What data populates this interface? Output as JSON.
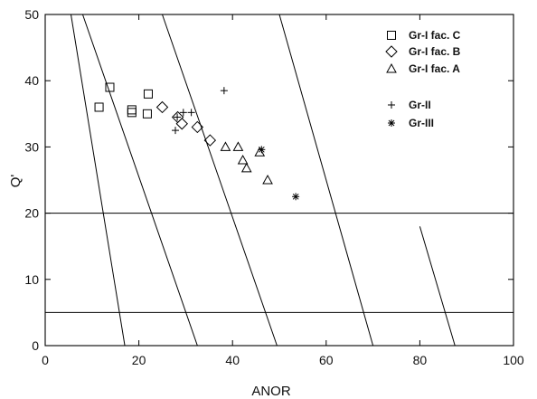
{
  "chart_data": {
    "type": "scatter",
    "title": "",
    "xlabel": "ANOR",
    "ylabel": "Q'",
    "xlim": [
      0,
      100
    ],
    "ylim": [
      0,
      50
    ],
    "xticks": [
      "0",
      "20",
      "40",
      "60",
      "80",
      "100"
    ],
    "yticks": [
      "0",
      "10",
      "20",
      "30",
      "40",
      "50"
    ],
    "grid": false,
    "legend_position": "top-right",
    "field_boundaries": [
      {
        "from": [
          5.5,
          50
        ],
        "to": [
          17,
          0
        ]
      },
      {
        "from": [
          8,
          50
        ],
        "to": [
          32.5,
          0
        ]
      },
      {
        "from": [
          25,
          50
        ],
        "to": [
          49.5,
          0
        ]
      },
      {
        "from": [
          50,
          50
        ],
        "to": [
          70,
          0
        ]
      },
      {
        "from": [
          80,
          18
        ],
        "to": [
          87.5,
          0
        ]
      },
      {
        "from": [
          0,
          20
        ],
        "to": [
          100,
          20
        ]
      },
      {
        "from": [
          0,
          5
        ],
        "to": [
          100,
          5
        ]
      }
    ],
    "series": [
      {
        "name": "Gr-I fac. C",
        "marker": "square",
        "points": [
          [
            11.5,
            36
          ],
          [
            13.8,
            39
          ],
          [
            18.5,
            35.2
          ],
          [
            18.5,
            35.6
          ],
          [
            21.8,
            35
          ],
          [
            22,
            38
          ]
        ]
      },
      {
        "name": "Gr-I fac. B",
        "marker": "diamond",
        "points": [
          [
            25,
            36
          ],
          [
            28.3,
            34.5
          ],
          [
            29.2,
            33.5
          ],
          [
            32.5,
            33
          ],
          [
            35.2,
            31
          ]
        ]
      },
      {
        "name": "Gr-I fac. A",
        "marker": "triangle",
        "points": [
          [
            38.5,
            30
          ],
          [
            41.2,
            30
          ],
          [
            42.2,
            28
          ],
          [
            43,
            26.8
          ],
          [
            45.8,
            29.2
          ],
          [
            47.5,
            25
          ]
        ]
      },
      {
        "name": "Gr-II",
        "marker": "plus",
        "points": [
          [
            27.8,
            32.5
          ],
          [
            28.2,
            34.5
          ],
          [
            29.5,
            35.2
          ],
          [
            31.2,
            35.2
          ],
          [
            38.2,
            38.5
          ]
        ]
      },
      {
        "name": "Gr-III",
        "marker": "asterisk",
        "points": [
          [
            46.2,
            29.6
          ],
          [
            53.5,
            22.5
          ]
        ]
      }
    ]
  }
}
